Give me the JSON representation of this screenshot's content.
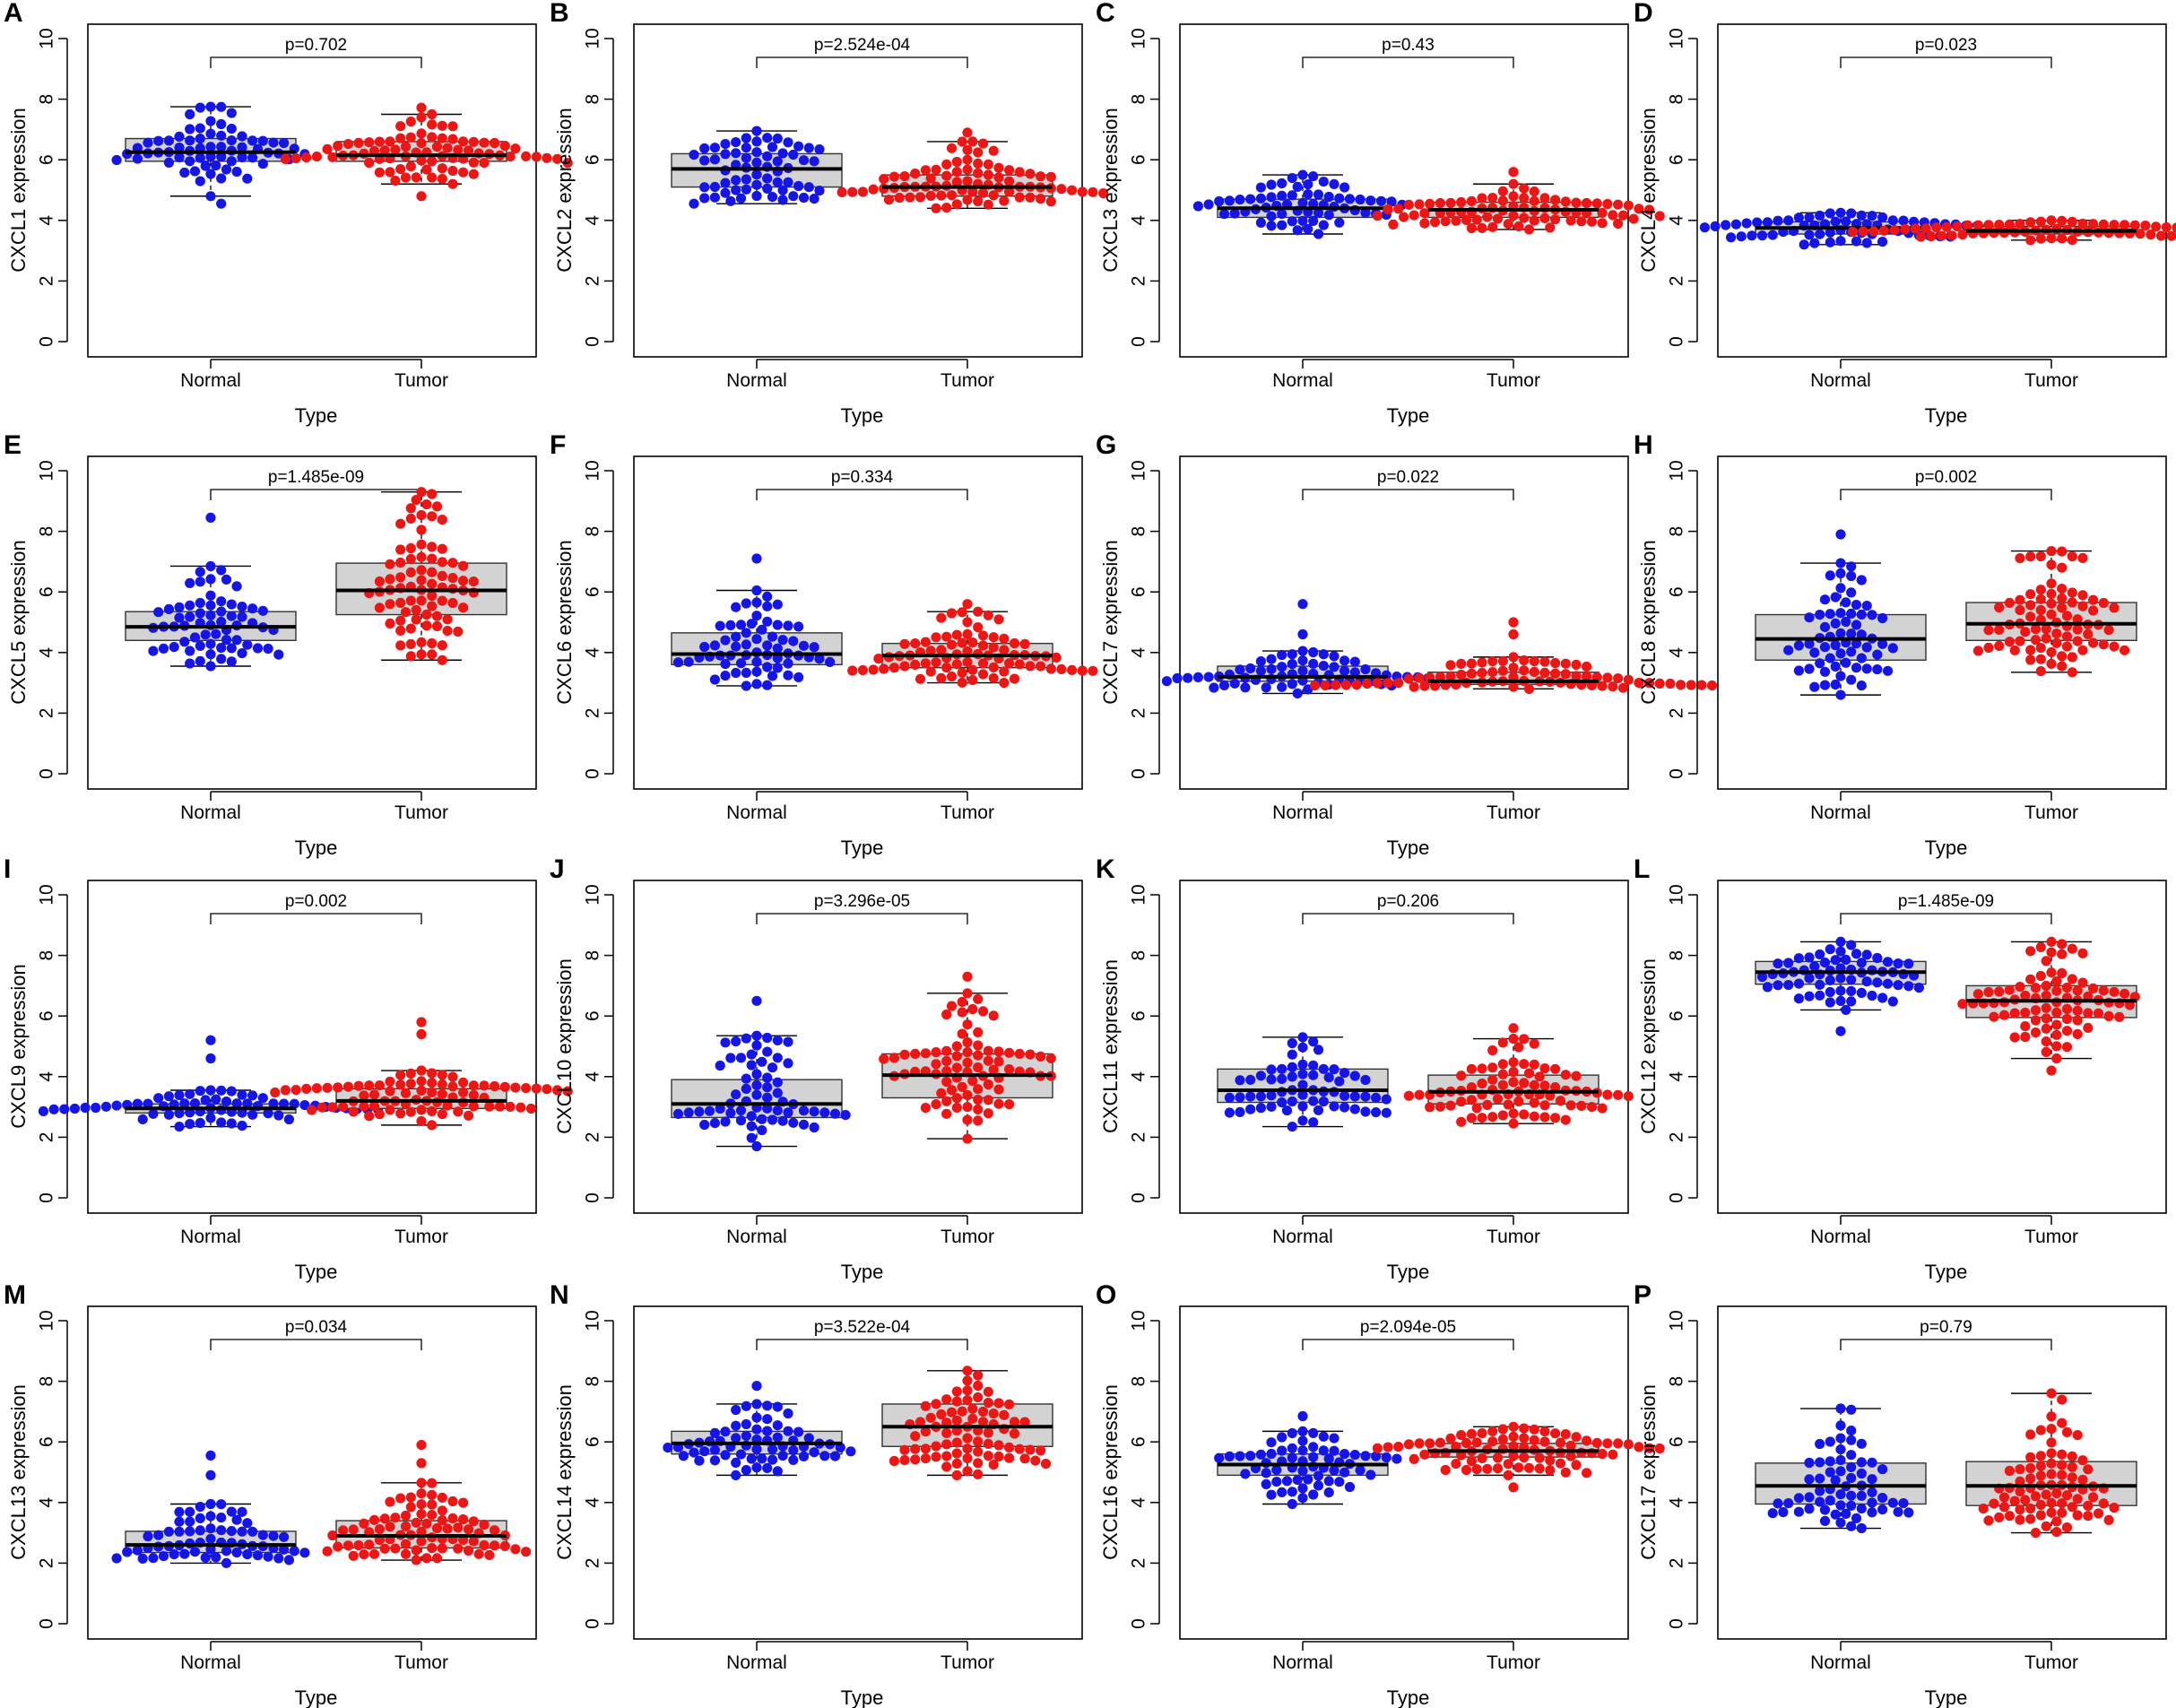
{
  "chart_data": {
    "type": "boxplot-beeswarm",
    "shared": {
      "xlabel": "Type",
      "categories": [
        "Normal",
        "Tumor"
      ],
      "ylim": [
        0,
        10
      ],
      "yticks": [
        0,
        2,
        4,
        6,
        8,
        10
      ],
      "colors": {
        "Normal": "#1515e8",
        "Tumor": "#ee1515",
        "box_fill": "#d3d3d3"
      }
    },
    "panels": [
      {
        "letter": "A",
        "ylabel": "CXCL1 expression",
        "p": "p=0.702",
        "normal": {
          "min": 4.8,
          "q1": 5.95,
          "median": 6.25,
          "q3": 6.7,
          "max": 7.75,
          "points": [
            4.55,
            7.72
          ]
        },
        "tumor": {
          "min": 5.2,
          "q1": 5.95,
          "median": 6.15,
          "q3": 6.6,
          "max": 7.5,
          "points": [
            4.8,
            7.72
          ]
        }
      },
      {
        "letter": "B",
        "ylabel": "CXCL2 expression",
        "p": "p=2.524e-04",
        "normal": {
          "min": 4.55,
          "q1": 5.1,
          "median": 5.7,
          "q3": 6.2,
          "max": 6.95,
          "points": []
        },
        "tumor": {
          "min": 4.4,
          "q1": 4.8,
          "median": 5.1,
          "q3": 5.5,
          "max": 6.6,
          "points": [
            6.9
          ]
        }
      },
      {
        "letter": "C",
        "ylabel": "CXCL3 expression",
        "p": "p=0.43",
        "normal": {
          "min": 3.55,
          "q1": 4.1,
          "median": 4.4,
          "q3": 4.7,
          "max": 5.5,
          "points": []
        },
        "tumor": {
          "min": 3.7,
          "q1": 4.1,
          "median": 4.35,
          "q3": 4.6,
          "max": 5.2,
          "points": [
            5.6
          ]
        }
      },
      {
        "letter": "D",
        "ylabel": "CXCL4 expression",
        "p": "p=0.023",
        "normal": {
          "min": 3.2,
          "q1": 3.55,
          "median": 3.75,
          "q3": 3.95,
          "max": 4.25,
          "points": []
        },
        "tumor": {
          "min": 3.35,
          "q1": 3.55,
          "median": 3.65,
          "q3": 3.8,
          "max": 4.0,
          "points": []
        }
      },
      {
        "letter": "E",
        "ylabel": "CXCL5 expression",
        "p": "p=1.485e-09",
        "normal": {
          "min": 3.55,
          "q1": 4.4,
          "median": 4.85,
          "q3": 5.35,
          "max": 6.85,
          "points": [
            8.45
          ]
        },
        "tumor": {
          "min": 3.75,
          "q1": 5.25,
          "median": 6.05,
          "q3": 6.95,
          "max": 9.3,
          "points": []
        }
      },
      {
        "letter": "F",
        "ylabel": "CXCL6 expression",
        "p": "p=0.334",
        "normal": {
          "min": 2.9,
          "q1": 3.6,
          "median": 3.95,
          "q3": 4.65,
          "max": 6.05,
          "points": [
            7.1
          ]
        },
        "tumor": {
          "min": 3.0,
          "q1": 3.5,
          "median": 3.9,
          "q3": 4.3,
          "max": 5.35,
          "points": [
            5.6
          ]
        }
      },
      {
        "letter": "G",
        "ylabel": "CXCL7 expression",
        "p": "p=0.022",
        "normal": {
          "min": 2.65,
          "q1": 3.05,
          "median": 3.2,
          "q3": 3.55,
          "max": 4.05,
          "points": [
            4.6,
            5.6
          ]
        },
        "tumor": {
          "min": 2.8,
          "q1": 2.95,
          "median": 3.05,
          "q3": 3.35,
          "max": 3.85,
          "points": [
            4.6,
            5.0
          ]
        }
      },
      {
        "letter": "H",
        "ylabel": "CXCL8 expression",
        "p": "p=0.002",
        "normal": {
          "min": 2.6,
          "q1": 3.75,
          "median": 4.45,
          "q3": 5.25,
          "max": 6.95,
          "points": [
            7.9
          ]
        },
        "tumor": {
          "min": 3.35,
          "q1": 4.4,
          "median": 4.95,
          "q3": 5.65,
          "max": 7.35,
          "points": []
        }
      },
      {
        "letter": "I",
        "ylabel": "CXCL9 expression",
        "p": "p=0.002",
        "normal": {
          "min": 2.35,
          "q1": 2.8,
          "median": 2.95,
          "q3": 3.1,
          "max": 3.55,
          "points": [
            4.6,
            5.2
          ]
        },
        "tumor": {
          "min": 2.4,
          "q1": 2.95,
          "median": 3.2,
          "q3": 3.6,
          "max": 4.2,
          "points": [
            5.4,
            5.8
          ]
        }
      },
      {
        "letter": "J",
        "ylabel": "CXCL10 expression",
        "p": "p=3.296e-05",
        "normal": {
          "min": 1.7,
          "q1": 2.65,
          "median": 3.1,
          "q3": 3.9,
          "max": 5.35,
          "points": [
            6.5
          ]
        },
        "tumor": {
          "min": 1.95,
          "q1": 3.3,
          "median": 4.05,
          "q3": 4.75,
          "max": 6.75,
          "points": [
            7.3
          ]
        }
      },
      {
        "letter": "K",
        "ylabel": "CXCL11 expression",
        "p": "p=0.206",
        "normal": {
          "min": 2.35,
          "q1": 3.15,
          "median": 3.55,
          "q3": 4.25,
          "max": 5.3,
          "points": []
        },
        "tumor": {
          "min": 2.45,
          "q1": 3.1,
          "median": 3.5,
          "q3": 4.05,
          "max": 5.25,
          "points": [
            5.6
          ]
        }
      },
      {
        "letter": "L",
        "ylabel": "CXCL12 expression",
        "p": "p=1.485e-09",
        "normal": {
          "min": 6.2,
          "q1": 7.05,
          "median": 7.45,
          "q3": 7.8,
          "max": 8.45,
          "points": [
            5.5
          ]
        },
        "tumor": {
          "min": 4.6,
          "q1": 5.95,
          "median": 6.5,
          "q3": 7.0,
          "max": 8.45,
          "points": [
            4.2
          ]
        }
      },
      {
        "letter": "M",
        "ylabel": "CXCL13 expression",
        "p": "p=0.034",
        "normal": {
          "min": 2.0,
          "q1": 2.35,
          "median": 2.6,
          "q3": 3.05,
          "max": 3.95,
          "points": [
            4.9,
            5.55
          ]
        },
        "tumor": {
          "min": 2.1,
          "q1": 2.5,
          "median": 2.9,
          "q3": 3.4,
          "max": 4.65,
          "points": [
            5.3,
            5.9
          ]
        }
      },
      {
        "letter": "N",
        "ylabel": "CXCL14 expression",
        "p": "p=3.522e-04",
        "normal": {
          "min": 4.9,
          "q1": 5.6,
          "median": 5.95,
          "q3": 6.35,
          "max": 7.25,
          "points": [
            7.85
          ]
        },
        "tumor": {
          "min": 4.9,
          "q1": 5.85,
          "median": 6.5,
          "q3": 7.25,
          "max": 8.35,
          "points": []
        }
      },
      {
        "letter": "O",
        "ylabel": "CXCL16 expression",
        "p": "p=2.094e-05",
        "normal": {
          "min": 3.95,
          "q1": 4.9,
          "median": 5.25,
          "q3": 5.6,
          "max": 6.35,
          "points": [
            6.85
          ]
        },
        "tumor": {
          "min": 4.9,
          "q1": 5.5,
          "median": 5.7,
          "q3": 5.95,
          "max": 6.5,
          "points": [
            4.5
          ]
        }
      },
      {
        "letter": "P",
        "ylabel": "CXCL17 expression",
        "p": "p=0.79",
        "normal": {
          "min": 3.15,
          "q1": 3.95,
          "median": 4.55,
          "q3": 5.3,
          "max": 7.1,
          "points": []
        },
        "tumor": {
          "min": 3.0,
          "q1": 3.9,
          "median": 4.55,
          "q3": 5.35,
          "max": 7.6,
          "points": []
        }
      }
    ]
  }
}
